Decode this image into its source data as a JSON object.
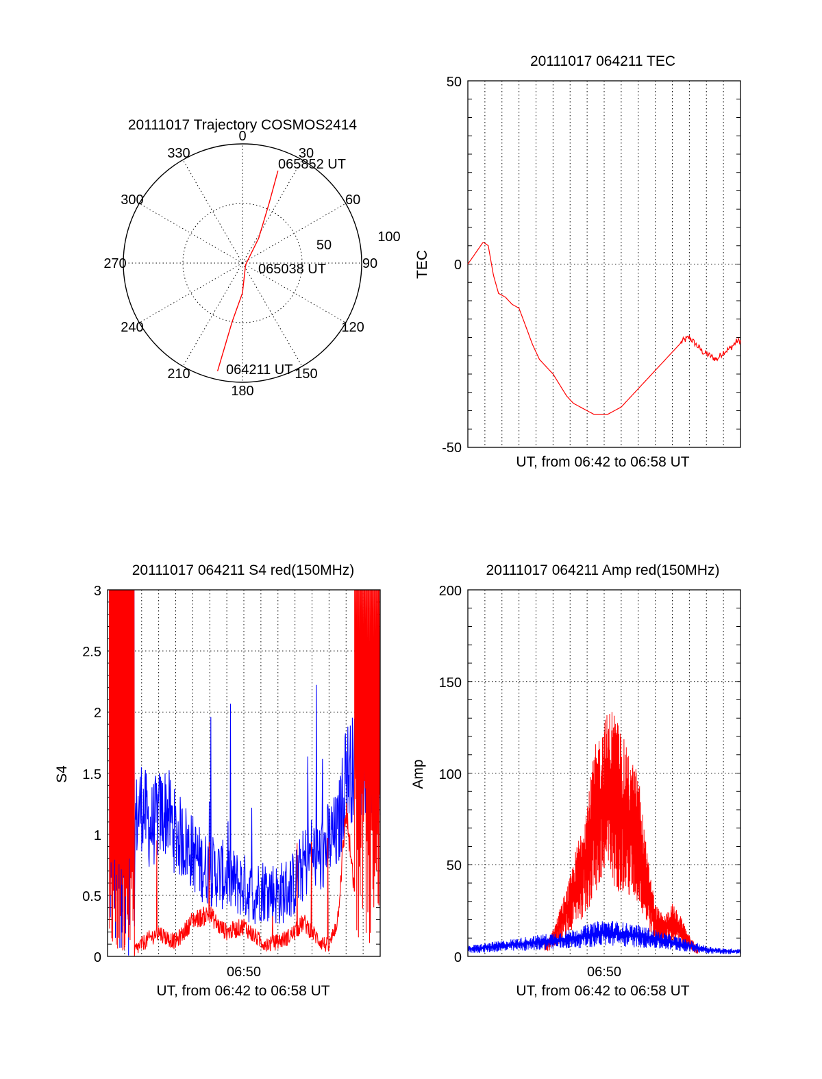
{
  "chart_data": [
    {
      "type": "polar",
      "title": "20111017 Trajectory COSMOS2414",
      "azimuth_labels": [
        "0",
        "30",
        "60",
        "90",
        "120",
        "150",
        "180",
        "210",
        "240",
        "270",
        "300",
        "330"
      ],
      "radial_labels": [
        "50",
        "100"
      ],
      "radial_max": 100,
      "trajectory": {
        "color": "#ff0000",
        "points": [
          {
            "az": 193,
            "r": 93
          },
          {
            "az": 190,
            "r": 50
          },
          {
            "az": 180,
            "r": 25
          },
          {
            "az": 120,
            "r": 3
          },
          {
            "az": 33,
            "r": 25
          },
          {
            "az": 24,
            "r": 55
          },
          {
            "az": 21,
            "r": 83
          }
        ],
        "annotations": [
          {
            "text": "064211 UT",
            "az": 193,
            "r": 93
          },
          {
            "text": "065038 UT",
            "az": 90,
            "r": 15
          },
          {
            "text": "065852 UT",
            "az": 21,
            "r": 83
          }
        ]
      }
    },
    {
      "type": "line",
      "title": "20111017 064211 TEC",
      "xlabel": "UT, from 06:42 to 06:58 UT",
      "ylabel": "TEC",
      "xlim": [
        0,
        16
      ],
      "ylim": [
        -50,
        50
      ],
      "yticks": [
        "-50",
        "0",
        "50"
      ],
      "grid": true,
      "series": [
        {
          "color": "#ff0000",
          "x": [
            0,
            0.3,
            0.6,
            0.9,
            1.2,
            1.5,
            1.8,
            2.2,
            2.6,
            3.0,
            3.4,
            3.8,
            4.2,
            4.6,
            5.0,
            5.4,
            5.8,
            6.2,
            6.6,
            7.0,
            7.4,
            7.8,
            8.2,
            8.6,
            9.0,
            9.4,
            9.8,
            10.2,
            10.6,
            11.0,
            11.4,
            11.8,
            12.2,
            12.6,
            13.0,
            13.4,
            13.8,
            14.2,
            14.6,
            15.0,
            15.4,
            15.8,
            16.0
          ],
          "y": [
            0,
            2,
            4,
            6,
            5,
            -3,
            -8,
            -9,
            -11,
            -12,
            -17,
            -22,
            -26,
            -28,
            -30,
            -33,
            -36,
            -38,
            -39,
            -40,
            -41,
            -41,
            -41,
            -40,
            -39,
            -37,
            -35,
            -33,
            -31,
            -29,
            -27,
            -25,
            -23,
            -21,
            -20,
            -22,
            -24,
            -25,
            -26,
            -24,
            -23,
            -21,
            -21
          ]
        }
      ]
    },
    {
      "type": "line",
      "title": "20111017 064211 S4 red(150MHz)",
      "xlabel": "UT, from 06:42 to 06:58 UT",
      "ylabel": "S4",
      "xlim": [
        0,
        16
      ],
      "ylim": [
        0,
        3
      ],
      "yticks": [
        "0",
        "0.5",
        "1",
        "1.5",
        "2",
        "2.5",
        "3"
      ],
      "xtick_label": "06:50",
      "grid": true,
      "series": [
        {
          "color": "#0000ff",
          "x": [
            1.6,
            2.0,
            2.5,
            3.0,
            3.5,
            4.0,
            4.5,
            5.0,
            5.5,
            6.0,
            6.5,
            7.0,
            7.5,
            8.0,
            8.5,
            9.0,
            9.5,
            10.0,
            10.5,
            11.0,
            11.5,
            12.0,
            12.5,
            13.0,
            13.5,
            14.0,
            14.5,
            15.0,
            15.5,
            16.0
          ],
          "y": [
            1.1,
            1.25,
            1.05,
            1.15,
            1.2,
            1.0,
            0.95,
            0.85,
            0.75,
            0.7,
            0.68,
            0.65,
            0.6,
            0.58,
            0.5,
            0.55,
            0.55,
            0.5,
            0.55,
            0.6,
            0.75,
            0.85,
            0.8,
            0.95,
            1.0,
            1.5,
            1.55,
            1.6,
            1.6,
            1.5
          ]
        },
        {
          "color": "#ff0000",
          "x": [
            1.6,
            2.0,
            2.5,
            3.0,
            3.5,
            4.0,
            4.5,
            5.0,
            5.5,
            6.0,
            6.5,
            7.0,
            7.5,
            8.0,
            8.5,
            9.0,
            9.5,
            10.0,
            10.5,
            11.0,
            11.5,
            12.0,
            12.5,
            13.0,
            13.5,
            14.0,
            14.5
          ],
          "y": [
            0.05,
            0.1,
            0.15,
            0.2,
            0.15,
            0.12,
            0.2,
            0.3,
            0.32,
            0.35,
            0.25,
            0.2,
            0.22,
            0.25,
            0.18,
            0.12,
            0.1,
            0.12,
            0.15,
            0.2,
            0.28,
            0.2,
            0.12,
            0.08,
            0.3,
            1.2,
            0.5
          ]
        }
      ]
    },
    {
      "type": "line",
      "title": "20111017 064211 Amp red(150MHz)",
      "xlabel": "UT, from 06:42 to 06:58 UT",
      "ylabel": "Amp",
      "xlim": [
        0,
        16
      ],
      "ylim": [
        0,
        200
      ],
      "yticks": [
        "0",
        "50",
        "100",
        "150",
        "200"
      ],
      "xtick_label": "06:50",
      "grid": true,
      "series": [
        {
          "color": "#ff0000",
          "x": [
            4.5,
            5.0,
            5.5,
            6.0,
            6.5,
            7.0,
            7.5,
            8.0,
            8.5,
            9.0,
            9.5,
            10.0,
            10.5,
            11.0,
            11.5,
            12.0,
            12.5,
            13.0,
            13.5
          ],
          "y": [
            5,
            10,
            20,
            30,
            45,
            60,
            80,
            90,
            95,
            85,
            75,
            70,
            40,
            20,
            15,
            20,
            15,
            8,
            3
          ]
        },
        {
          "color": "#0000ff",
          "x": [
            0,
            1,
            2,
            3,
            4,
            5,
            6,
            7,
            8,
            9,
            10,
            11,
            12,
            13,
            14,
            15,
            16
          ],
          "y": [
            4,
            5,
            6,
            7,
            8,
            9,
            10,
            12,
            14,
            13,
            12,
            10,
            8,
            6,
            4,
            3,
            3
          ]
        }
      ]
    }
  ]
}
